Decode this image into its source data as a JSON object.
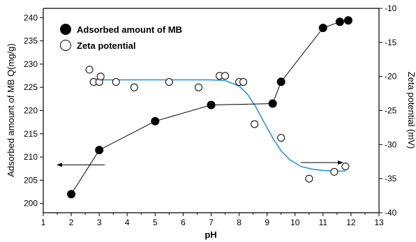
{
  "chart_data": {
    "type": "scatter",
    "xlabel": "pH",
    "ylabel_left": "Adsorbed amount of MB Q(mg/g)",
    "ylabel_right": "Zeta potential (mV)",
    "xlim": [
      1,
      13
    ],
    "ylim_left": [
      198,
      242
    ],
    "ylim_right": [
      -40,
      -10
    ],
    "x_ticks": [
      1,
      2,
      3,
      4,
      5,
      6,
      7,
      8,
      9,
      10,
      11,
      12,
      13
    ],
    "y_left_ticks": [
      200,
      205,
      210,
      215,
      220,
      225,
      230,
      235,
      240
    ],
    "y_right_ticks": [
      -40,
      -35,
      -30,
      -25,
      -20,
      -15,
      -10
    ],
    "series": [
      {
        "name": "Adsorbed amount of MB",
        "axis": "left",
        "marker": "filled-circle",
        "connected": true,
        "x": [
          2.0,
          3.0,
          5.0,
          7.0,
          9.2,
          9.5,
          11.0,
          11.6,
          11.9
        ],
        "y": [
          202.0,
          211.5,
          217.7,
          221.2,
          221.5,
          226.2,
          237.8,
          239.1,
          239.4
        ]
      },
      {
        "name": "Zeta potential",
        "axis": "right",
        "marker": "open-circle",
        "connected": false,
        "x": [
          2.65,
          2.8,
          3.0,
          3.05,
          3.6,
          4.25,
          5.5,
          6.55,
          7.3,
          7.5,
          8.0,
          8.15,
          8.55,
          9.5,
          10.5,
          11.4,
          11.8
        ],
        "y": [
          -19.0,
          -20.8,
          -20.8,
          -20.0,
          -20.8,
          -21.6,
          -20.8,
          -21.6,
          -19.9,
          -19.9,
          -20.8,
          -20.8,
          -27.0,
          -29.0,
          -35.0,
          -34.0,
          -33.2
        ]
      },
      {
        "name": "Zeta potential fit",
        "axis": "right",
        "type": "line",
        "color": "#1a8fe6",
        "x": [
          3.0,
          4.0,
          5.0,
          6.0,
          7.0,
          7.5,
          8.0,
          8.3,
          8.6,
          8.9,
          9.2,
          9.5,
          9.8,
          10.2,
          10.6,
          11.0,
          11.5,
          11.8
        ],
        "y": [
          -20.5,
          -20.5,
          -20.5,
          -20.5,
          -20.5,
          -20.6,
          -21.4,
          -22.6,
          -24.5,
          -26.8,
          -29.0,
          -30.9,
          -32.2,
          -33.2,
          -33.6,
          -33.8,
          -33.9,
          -33.9
        ]
      }
    ],
    "legend": {
      "placement": "top-left",
      "entries": [
        {
          "label": "Adsorbed amount of MB",
          "marker": "filled-circle"
        },
        {
          "label": "Zeta potential",
          "marker": "open-circle"
        }
      ]
    },
    "annotations": [
      {
        "type": "arrow",
        "direction": "left",
        "from": [
          3.2,
          208.3
        ],
        "to": [
          1.5,
          208.3
        ],
        "axis": "left"
      },
      {
        "type": "arrow",
        "direction": "right",
        "from": [
          10.2,
          208.8
        ],
        "to": [
          11.7,
          208.8
        ],
        "axis": "left"
      }
    ],
    "grid": false
  }
}
